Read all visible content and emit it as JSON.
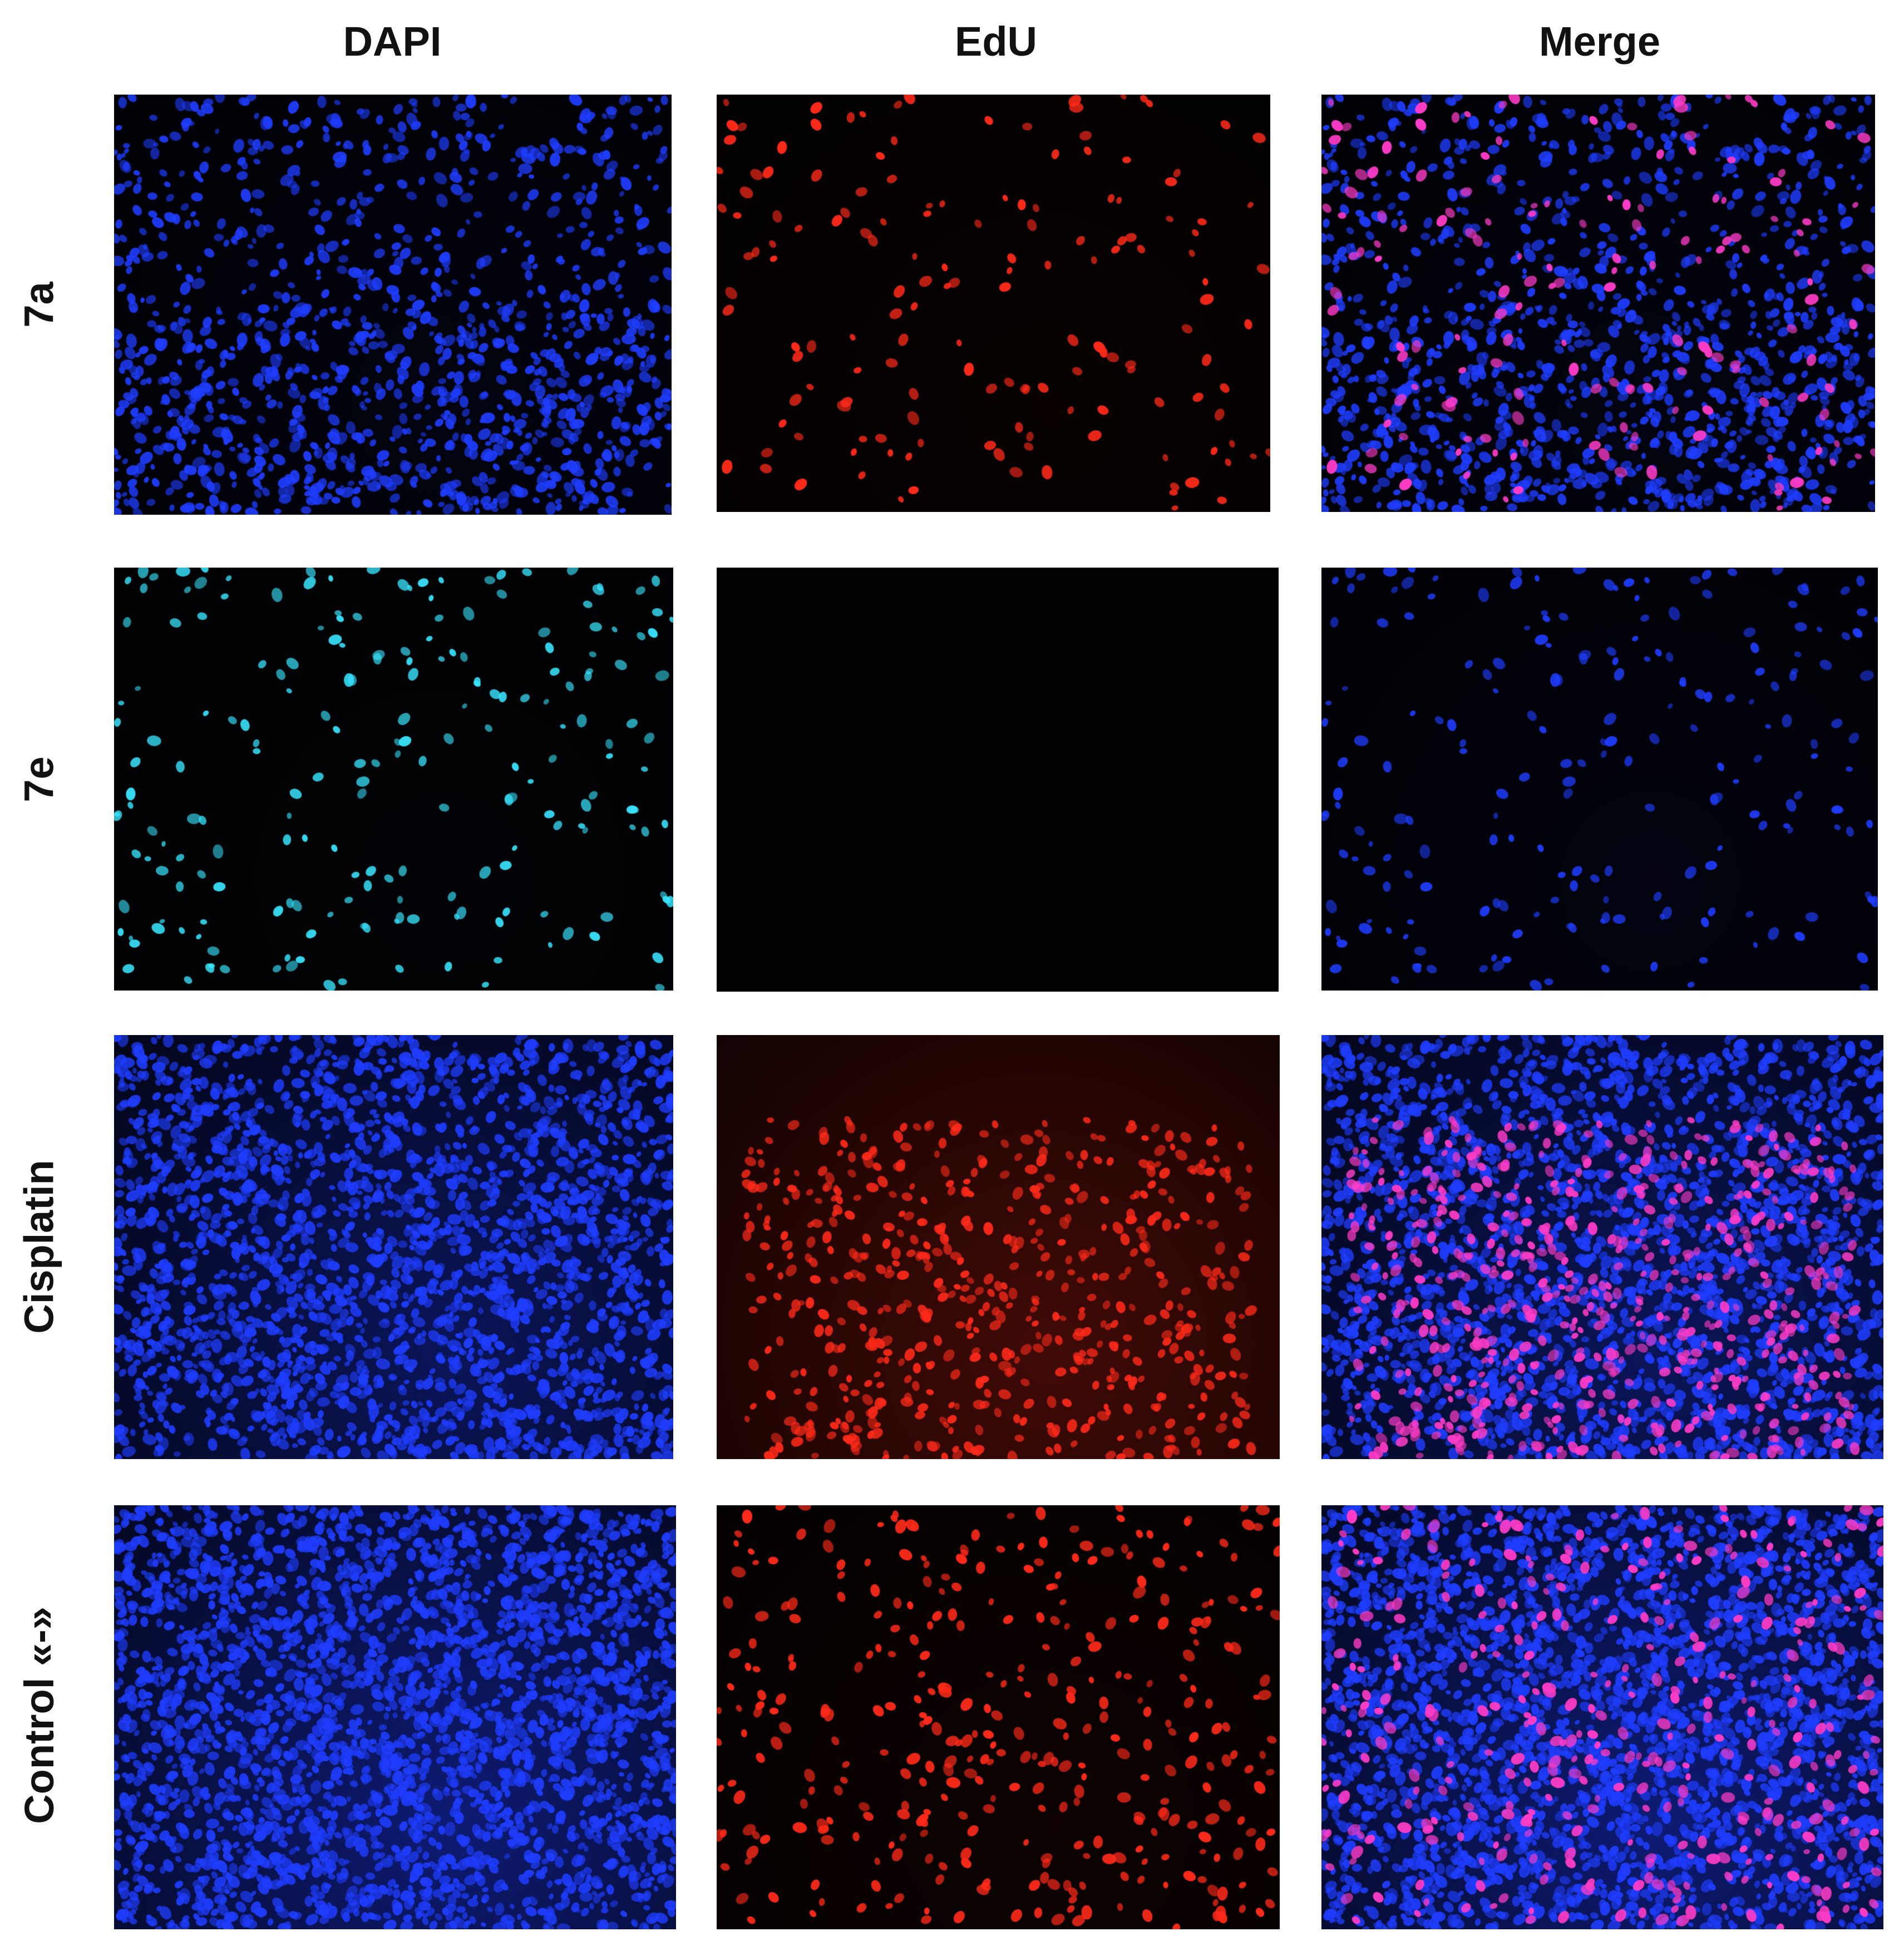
{
  "columns": [
    "DAPI",
    "EdU",
    "Merge"
  ],
  "rows": [
    "7a",
    "7e",
    "Cisplatin",
    "Control «-»"
  ],
  "panels": [
    [
      {
        "id": "dapi-7a",
        "nuclei": "blue",
        "density": 0.45,
        "glow": 0.06
      },
      {
        "id": "edu-7a",
        "nuclei": "red",
        "density": 0.1,
        "glow": 0.03
      },
      {
        "id": "merge-7a",
        "nuclei": "blue+magenta",
        "density": 0.45,
        "glow": 0.06
      }
    ],
    [
      {
        "id": "dapi-7e",
        "nuclei": "cyan",
        "density": 0.08,
        "glow": 0.06
      },
      {
        "id": "edu-7e",
        "nuclei": "none",
        "density": 0.0,
        "glow": 0.02
      },
      {
        "id": "merge-7e",
        "nuclei": "blue",
        "density": 0.08,
        "glow": 0.06
      }
    ],
    [
      {
        "id": "dapi-cisplatin",
        "nuclei": "blue",
        "density": 0.85,
        "glow": 0.35
      },
      {
        "id": "edu-cisplatin",
        "nuclei": "red",
        "density": 0.55,
        "glow": 0.25
      },
      {
        "id": "merge-cisplatin",
        "nuclei": "blue+magenta",
        "density": 0.85,
        "glow": 0.35
      }
    ],
    [
      {
        "id": "dapi-control",
        "nuclei": "blue",
        "density": 1.0,
        "glow": 0.45
      },
      {
        "id": "edu-control",
        "nuclei": "red",
        "density": 0.45,
        "glow": 0.05
      },
      {
        "id": "merge-control",
        "nuclei": "blue+magenta",
        "density": 1.0,
        "glow": 0.45
      }
    ]
  ],
  "colors": {
    "blue": "#1f3dff",
    "cyan": "#39e6ff",
    "red": "#ff2a1a",
    "magenta": "#ff3cc8",
    "background": "#000000",
    "label": "#111111"
  }
}
